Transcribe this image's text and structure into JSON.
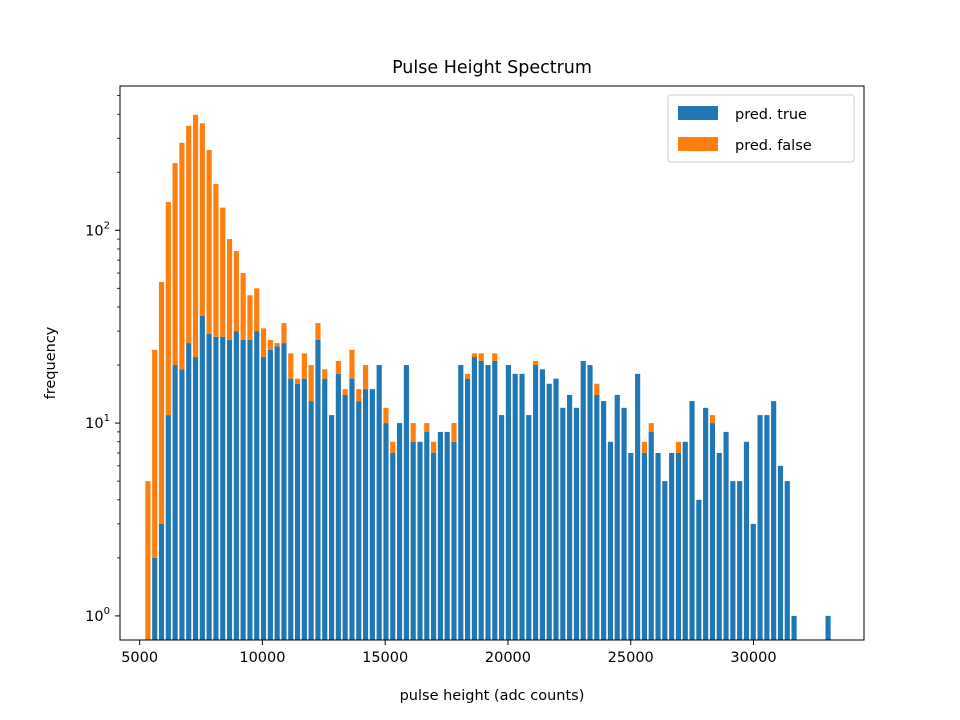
{
  "chart_data": {
    "type": "bar",
    "stacked": true,
    "title": "Pulse Height Spectrum",
    "xlabel": "pulse height (adc counts)",
    "ylabel": "frequency",
    "yscale": "log",
    "xlim": [
      4200,
      34500
    ],
    "ylim": [
      0.75,
      560
    ],
    "grid": false,
    "legend_position": "top-right",
    "x_ticks": [
      5000,
      10000,
      15000,
      20000,
      25000,
      30000
    ],
    "x_tick_labels": [
      "5000",
      "10000",
      "15000",
      "20000",
      "25000",
      "30000"
    ],
    "y_ticks": [
      1,
      10,
      100
    ],
    "y_tick_base": "10",
    "y_tick_exponents": [
      "0",
      "1",
      "2"
    ],
    "bin_width": 280,
    "x": [
      5337,
      5614,
      5891,
      6168,
      6445,
      6722,
      6999,
      7276,
      7553,
      7830,
      8107,
      8384,
      8661,
      8938,
      9215,
      9492,
      9769,
      10046,
      10323,
      10600,
      10877,
      11154,
      11431,
      11708,
      11985,
      12262,
      12539,
      12816,
      13093,
      13370,
      13647,
      13924,
      14201,
      14478,
      14755,
      15032,
      15309,
      15586,
      15863,
      16140,
      16417,
      16694,
      16971,
      17248,
      17525,
      17802,
      18079,
      18356,
      18633,
      18910,
      19187,
      19464,
      19741,
      20018,
      20295,
      20572,
      20849,
      21126,
      21403,
      21680,
      21957,
      22234,
      22511,
      22788,
      23065,
      23342,
      23619,
      23896,
      24173,
      24450,
      24727,
      25004,
      25281,
      25558,
      25835,
      26112,
      26389,
      26666,
      26943,
      27220,
      27497,
      27774,
      28051,
      28328,
      28605,
      28882,
      29159,
      29436,
      29713,
      29990,
      30267,
      30544,
      30821,
      31098,
      31375,
      31652,
      33037
    ],
    "series": [
      {
        "name": "pred. true",
        "color": "#1f77b4",
        "values": [
          0,
          2,
          3,
          11,
          20,
          19,
          26,
          22,
          36,
          29,
          28,
          28,
          27,
          30,
          27,
          27,
          30,
          22,
          24,
          25,
          26,
          17,
          16,
          17,
          13,
          27,
          17,
          11,
          18,
          14,
          17,
          13,
          15,
          15,
          20,
          10,
          7,
          10,
          20,
          8,
          8,
          9,
          7,
          9,
          9,
          8,
          20,
          17,
          22,
          21,
          20,
          21,
          11,
          20,
          18,
          18,
          11,
          20,
          19,
          16,
          17,
          12,
          14,
          12,
          21,
          20,
          14,
          13,
          8,
          14,
          12,
          7,
          18,
          7,
          9,
          7,
          5,
          7,
          7,
          8,
          13,
          4,
          12,
          10,
          7,
          9,
          5,
          5,
          8,
          3,
          11,
          11,
          13,
          6,
          5,
          1,
          1
        ]
      },
      {
        "name": "pred. false",
        "color": "#ff7f0e",
        "values": [
          5,
          22,
          51,
          129,
          203,
          265,
          322,
          375,
          323,
          232,
          146,
          103,
          63,
          48,
          33,
          19,
          20,
          9,
          3,
          1,
          7,
          6,
          1,
          6,
          7,
          6,
          2,
          0,
          3,
          1,
          7,
          2,
          5,
          0,
          0,
          2,
          1,
          0,
          0,
          2,
          0,
          1,
          1,
          0,
          0,
          2,
          0,
          1,
          1,
          2,
          0,
          2,
          0,
          0,
          0,
          0,
          0,
          1,
          0,
          0,
          0,
          0,
          0,
          0,
          0,
          0,
          2,
          0,
          0,
          0,
          0,
          0,
          0,
          1,
          1,
          0,
          0,
          0,
          1,
          0,
          0,
          0,
          0,
          1,
          0,
          0,
          0,
          0,
          0,
          0,
          0,
          0,
          0,
          0,
          0,
          0,
          0
        ]
      }
    ]
  }
}
